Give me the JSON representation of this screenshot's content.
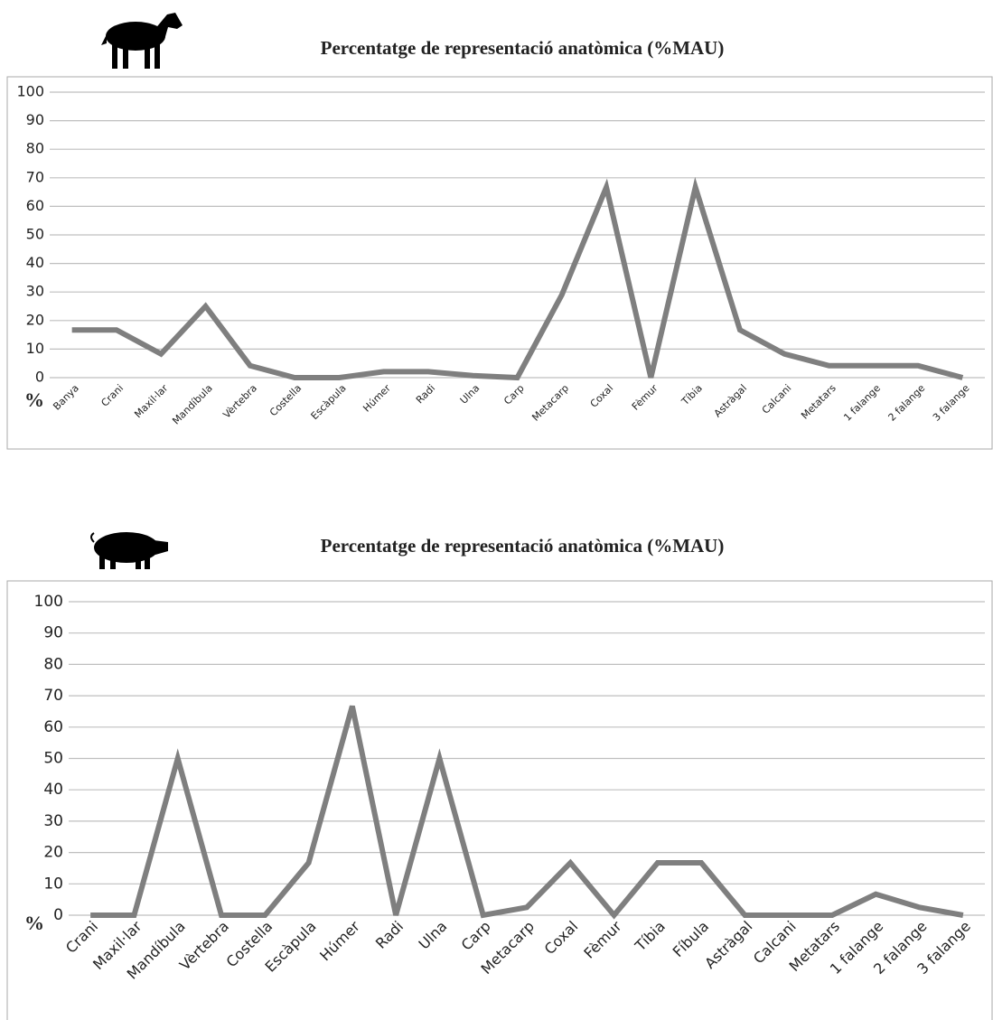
{
  "chart_data": [
    {
      "type": "line",
      "title": "Percentatge de representació anatòmica (%MAU)",
      "ylabel": "%",
      "categories": [
        "Banya",
        "Crani",
        "Maxil·lar",
        "Mandíbula",
        "Vèrtebra",
        "Costella",
        "Escàpula",
        "Húmer",
        "Radi",
        "Ulna",
        "Carp",
        "Metacarp",
        "Coxal",
        "Fèmur",
        "Tíbia",
        "Astràgal",
        "Calcani",
        "Metatars",
        "1 falange",
        "2 falange",
        "3 falange"
      ],
      "values": [
        16.7,
        16.7,
        8.3,
        25,
        4.2,
        0,
        0,
        2.1,
        2.1,
        0.7,
        0,
        29,
        66.7,
        0,
        66.7,
        16.7,
        8.3,
        4.2,
        4.2,
        4.2,
        0
      ],
      "color": "#7f7f7f",
      "ylim": [
        0,
        100
      ],
      "yticks": [
        0,
        10,
        20,
        30,
        40,
        50,
        60,
        70,
        80,
        90,
        100
      ],
      "grid": true
    },
    {
      "type": "line",
      "title": "Percentatge de representació anatòmica (%MAU)",
      "ylabel": "%",
      "categories": [
        "Crani",
        "Maxil·lar",
        "Mandíbula",
        "Vèrtebra",
        "Costella",
        "Escàpula",
        "Húmer",
        "Radi",
        "Ulna",
        "Carp",
        "Metacarp",
        "Coxal",
        "Fèmur",
        "Tíbia",
        "Fíbula",
        "Astràgal",
        "Calcani",
        "Metatars",
        "1 falange",
        "2 falange",
        "3 falange"
      ],
      "values": [
        0,
        0,
        50,
        0,
        0,
        16.7,
        66.7,
        0,
        50,
        0,
        2.5,
        16.7,
        0,
        16.7,
        16.7,
        0,
        0,
        0,
        6.7,
        2.5,
        0
      ],
      "color": "#7f7f7f",
      "ylim": [
        0,
        100
      ],
      "yticks": [
        0,
        10,
        20,
        30,
        40,
        50,
        60,
        70,
        80,
        90,
        100
      ],
      "grid": true
    }
  ]
}
